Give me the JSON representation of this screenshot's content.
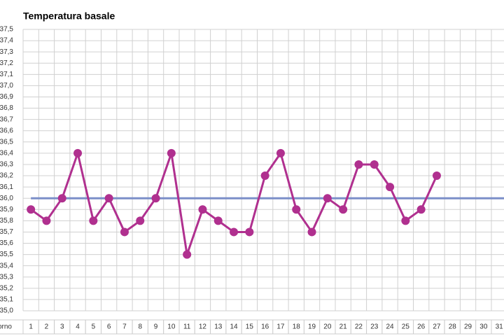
{
  "chart_data": {
    "type": "line",
    "title": "Temperatura basale",
    "x_label": "giorno",
    "categories": [
      "1",
      "2",
      "3",
      "4",
      "5",
      "6",
      "7",
      "8",
      "9",
      "10",
      "11",
      "12",
      "13",
      "14",
      "15",
      "16",
      "17",
      "18",
      "19",
      "20",
      "21",
      "22",
      "23",
      "24",
      "25",
      "26",
      "27",
      "28",
      "29",
      "30",
      "31"
    ],
    "series": [
      {
        "color": "#b0308f",
        "values": [
          35.9,
          35.8,
          36.0,
          36.4,
          35.8,
          36.0,
          35.7,
          35.8,
          36.0,
          36.4,
          35.5,
          35.9,
          35.8,
          35.7,
          35.7,
          36.2,
          36.4,
          35.9,
          35.7,
          36.0,
          35.9,
          36.3,
          36.3,
          36.1,
          35.8,
          35.9,
          36.2,
          null,
          null,
          null,
          null
        ]
      }
    ],
    "reference_line": {
      "value": 36.0,
      "color": "#7b8fc9"
    },
    "ylim": [
      35.0,
      37.5
    ],
    "yticks": [
      {
        "value": 35.0,
        "label": "35,0"
      },
      {
        "value": 35.1,
        "label": "35,1"
      },
      {
        "value": 35.2,
        "label": "35,2"
      },
      {
        "value": 35.3,
        "label": "35,3"
      },
      {
        "value": 35.4,
        "label": "35,4"
      },
      {
        "value": 35.5,
        "label": "35,5"
      },
      {
        "value": 35.6,
        "label": "35,6"
      },
      {
        "value": 35.7,
        "label": "35,7"
      },
      {
        "value": 35.8,
        "label": "35,8"
      },
      {
        "value": 35.9,
        "label": "35,9"
      },
      {
        "value": 36.0,
        "label": "36,0"
      },
      {
        "value": 36.1,
        "label": "36,1"
      },
      {
        "value": 36.2,
        "label": "36,2"
      },
      {
        "value": 36.3,
        "label": "36,3"
      },
      {
        "value": 36.4,
        "label": "36,4"
      },
      {
        "value": 36.5,
        "label": "36,5"
      },
      {
        "value": 36.6,
        "label": "36,6"
      },
      {
        "value": 36.7,
        "label": "36,7"
      },
      {
        "value": 36.8,
        "label": "36,8"
      },
      {
        "value": 36.9,
        "label": "36,9"
      },
      {
        "value": 37.0,
        "label": "37,0"
      },
      {
        "value": 37.1,
        "label": "37,1"
      },
      {
        "value": 37.2,
        "label": "37,2"
      },
      {
        "value": 37.3,
        "label": "37,3"
      },
      {
        "value": 37.4,
        "label": "37,4"
      },
      {
        "value": 37.5,
        "label": "37,5"
      }
    ],
    "grid": true
  }
}
